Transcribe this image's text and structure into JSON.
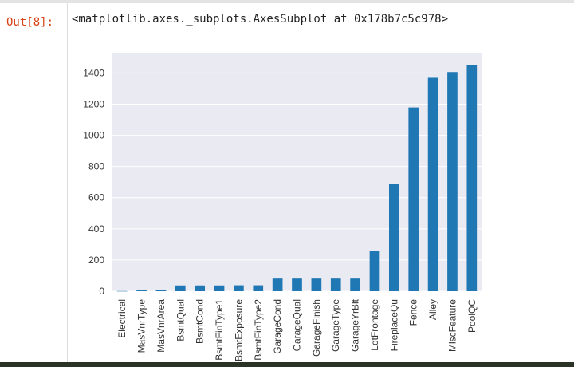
{
  "cell": {
    "prompt": "Out[8]:",
    "repr": "<matplotlib.axes._subplots.AxesSubplot at 0x178b7c5c978>"
  },
  "colors": {
    "bar": "#1f77b4",
    "plot_bg": "#eaeaf2",
    "grid": "#ffffff",
    "prompt": "#d84315"
  },
  "chart_data": {
    "type": "bar",
    "categories": [
      "Electrical",
      "MasVnrType",
      "MasVnrArea",
      "BsmtQual",
      "BsmtCond",
      "BsmtFinType1",
      "BsmtExposure",
      "BsmtFinType2",
      "GarageCond",
      "GarageQual",
      "GarageFinish",
      "GarageType",
      "GarageYrBlt",
      "LotFrontage",
      "FireplaceQu",
      "Fence",
      "Alley",
      "MiscFeature",
      "PoolQC"
    ],
    "values": [
      1,
      8,
      8,
      37,
      37,
      37,
      38,
      38,
      81,
      81,
      81,
      81,
      81,
      259,
      690,
      1179,
      1369,
      1406,
      1453
    ],
    "yticks": [
      0,
      200,
      400,
      600,
      800,
      1000,
      1200,
      1400
    ],
    "ylim": [
      0,
      1530
    ],
    "grid": true,
    "title": "",
    "xlabel": "",
    "ylabel": ""
  }
}
